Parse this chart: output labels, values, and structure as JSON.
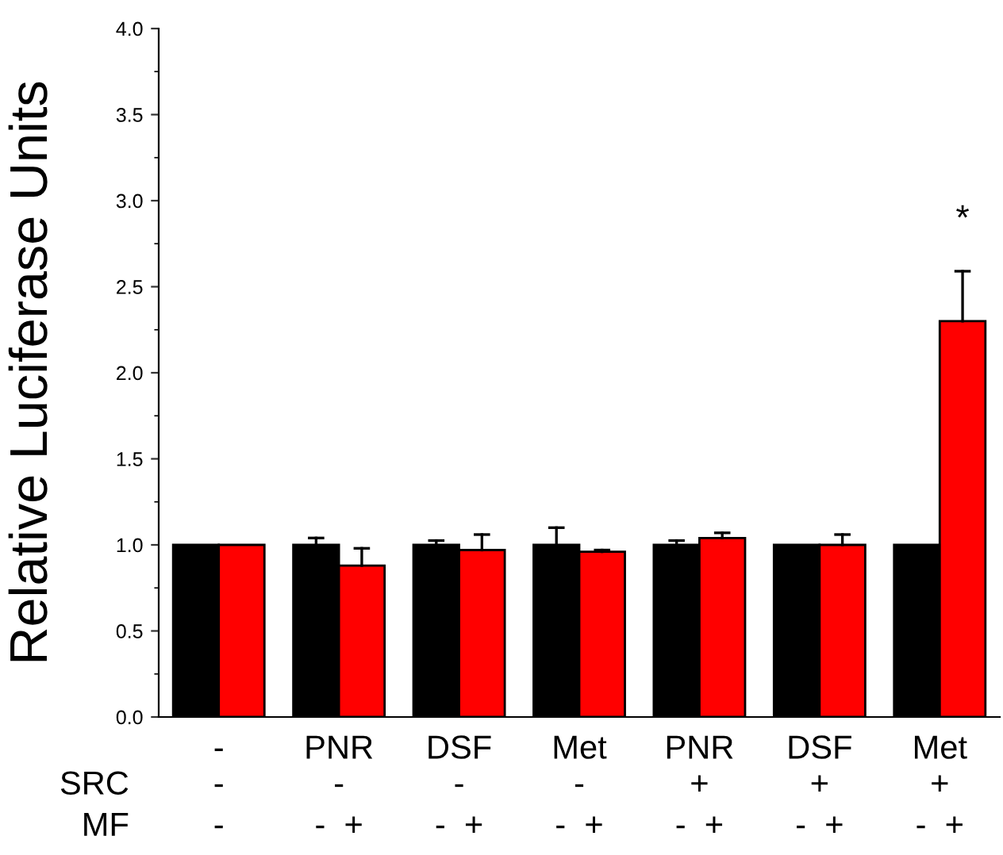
{
  "chart_data": {
    "type": "bar",
    "ylabel": "Relative Luciferase Units",
    "categories": [
      "-",
      "PNR",
      "DSF",
      "Met",
      "PNR",
      "DSF",
      "Met"
    ],
    "series": [
      {
        "color": "#000000",
        "values": [
          1.0,
          1.0,
          1.0,
          1.0,
          1.0,
          1.0,
          1.0
        ],
        "errors": [
          null,
          [
            1.0,
            1.04
          ],
          [
            1.0,
            1.025
          ],
          [
            1.0,
            1.1
          ],
          [
            1.0,
            1.025
          ],
          null,
          null
        ]
      },
      {
        "color": "#ff0000",
        "values": [
          1.0,
          0.88,
          0.97,
          0.96,
          1.04,
          1.0,
          2.3
        ],
        "errors": [
          null,
          [
            0.88,
            0.98
          ],
          [
            0.97,
            1.06
          ],
          [
            0.96,
            0.97
          ],
          [
            1.04,
            1.07
          ],
          [
            1.0,
            1.06
          ],
          [
            2.3,
            2.59
          ]
        ]
      }
    ],
    "ylim": [
      0,
      4
    ],
    "yticks": [
      {
        "value": 0,
        "label": "0.0"
      },
      {
        "value": 0.5,
        "label": "0.5"
      },
      {
        "value": 1,
        "label": "1.0"
      },
      {
        "value": 1.5,
        "label": "1.5"
      },
      {
        "value": 2,
        "label": "2.0"
      },
      {
        "value": 2.5,
        "label": "2.5"
      },
      {
        "value": 3,
        "label": "3.0"
      },
      {
        "value": 3.5,
        "label": "3.5"
      },
      {
        "value": 4,
        "label": "4.0"
      }
    ],
    "annotations": [
      "*",
      "SRC",
      "-",
      "-",
      "-",
      "-",
      "+",
      "+",
      "+",
      "MF",
      "-",
      "-  +",
      "-  +",
      "-  +",
      "-  +",
      "-  +",
      "-  +"
    ]
  }
}
